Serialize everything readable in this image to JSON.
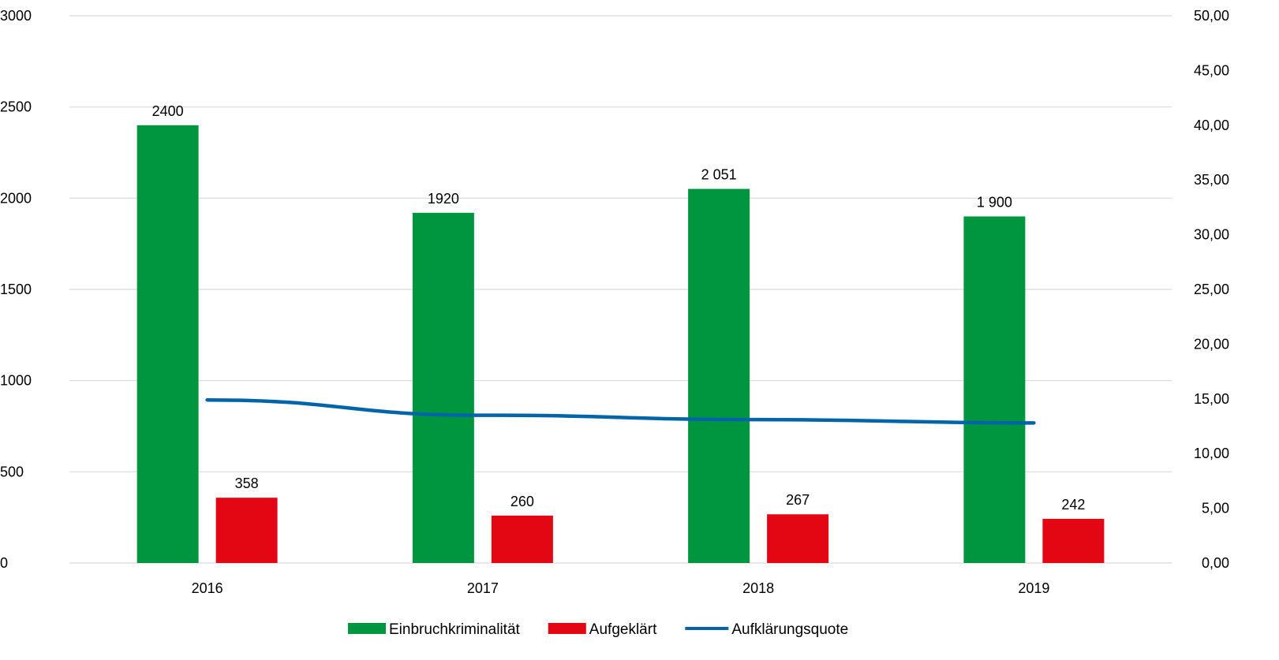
{
  "chart_data": {
    "type": "bar",
    "categories": [
      "2016",
      "2017",
      "2018",
      "2019"
    ],
    "series": [
      {
        "name": "Einbruchkriminalität",
        "kind": "bar",
        "axis": "left",
        "color": "#009640",
        "values": [
          2400,
          1920,
          2051,
          1900
        ],
        "labels": [
          "2400",
          "1920",
          "2 051",
          "1 900"
        ]
      },
      {
        "name": "Aufgeklärt",
        "kind": "bar",
        "axis": "left",
        "color": "#e30613",
        "values": [
          358,
          260,
          267,
          242
        ],
        "labels": [
          "358",
          "260",
          "267",
          "242"
        ]
      },
      {
        "name": "Aufklärungsquote",
        "kind": "line",
        "axis": "right",
        "color": "#0064a8",
        "values": [
          14.9,
          13.5,
          13.1,
          12.8
        ]
      }
    ],
    "y_left": {
      "lim": [
        0,
        3000
      ],
      "ticks": [
        "0",
        "500",
        "1000",
        "1500",
        "2000",
        "2500",
        "3000"
      ]
    },
    "y_right": {
      "lim": [
        0,
        50
      ],
      "ticks": [
        "0,00",
        "5,00",
        "10,00",
        "15,00",
        "20,00",
        "25,00",
        "30,00",
        "35,00",
        "40,00",
        "45,00",
        "50,00"
      ]
    },
    "grid": true,
    "legend": "bottom"
  }
}
